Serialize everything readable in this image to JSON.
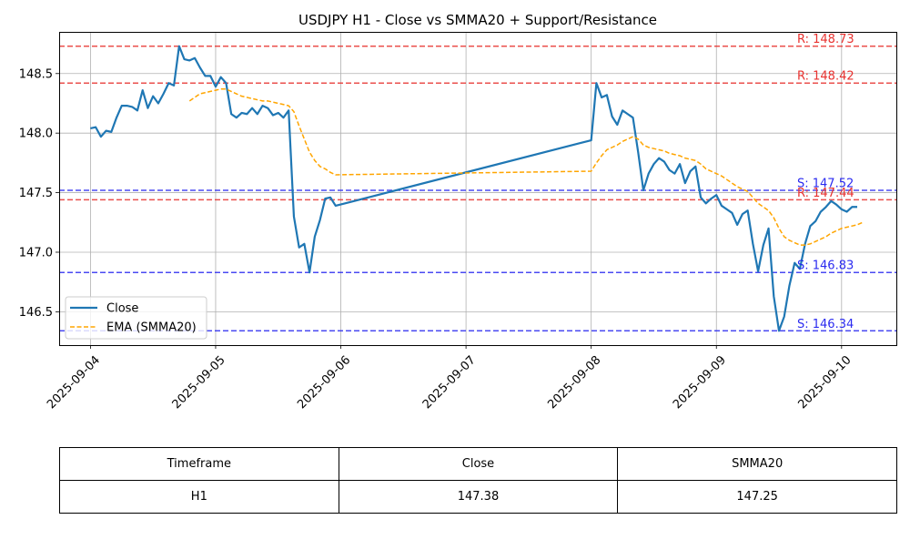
{
  "chart_data": {
    "type": "line",
    "title": "USDJPY H1 - Close vs SMMA20 + Support/Resistance",
    "xlabel": "",
    "ylabel": "",
    "x_ticks": [
      "2025-09-04",
      "2025-09-05",
      "2025-09-06",
      "2025-09-07",
      "2025-09-08",
      "2025-09-09",
      "2025-09-10"
    ],
    "y_ticks": [
      "146.5",
      "147.0",
      "147.5",
      "148.0",
      "148.5"
    ],
    "xlim": [
      "2025-09-03 18:00",
      "2025-09-10 10:30"
    ],
    "ylim": [
      146.22,
      148.85
    ],
    "grid": true,
    "legend_position": "lower-left",
    "series": [
      {
        "name": "Close",
        "color": "#1f77b4",
        "style": "solid",
        "points": [
          [
            "2025-09-04 00:00",
            148.04
          ],
          [
            "2025-09-04 01:00",
            148.05
          ],
          [
            "2025-09-04 02:00",
            147.97
          ],
          [
            "2025-09-04 03:00",
            148.02
          ],
          [
            "2025-09-04 04:00",
            148.01
          ],
          [
            "2025-09-04 05:00",
            148.13
          ],
          [
            "2025-09-04 06:00",
            148.23
          ],
          [
            "2025-09-04 07:00",
            148.23
          ],
          [
            "2025-09-04 08:00",
            148.22
          ],
          [
            "2025-09-04 09:00",
            148.19
          ],
          [
            "2025-09-04 10:00",
            148.36
          ],
          [
            "2025-09-04 11:00",
            148.21
          ],
          [
            "2025-09-04 12:00",
            148.31
          ],
          [
            "2025-09-04 13:00",
            148.25
          ],
          [
            "2025-09-04 14:00",
            148.33
          ],
          [
            "2025-09-04 15:00",
            148.42
          ],
          [
            "2025-09-04 16:00",
            148.4
          ],
          [
            "2025-09-04 17:00",
            148.73
          ],
          [
            "2025-09-04 18:00",
            148.62
          ],
          [
            "2025-09-04 19:00",
            148.61
          ],
          [
            "2025-09-04 20:00",
            148.63
          ],
          [
            "2025-09-04 21:00",
            148.55
          ],
          [
            "2025-09-04 22:00",
            148.48
          ],
          [
            "2025-09-04 23:00",
            148.48
          ],
          [
            "2025-09-05 00:00",
            148.39
          ],
          [
            "2025-09-05 01:00",
            148.47
          ],
          [
            "2025-09-05 02:00",
            148.42
          ],
          [
            "2025-09-05 03:00",
            148.16
          ],
          [
            "2025-09-05 04:00",
            148.13
          ],
          [
            "2025-09-05 05:00",
            148.17
          ],
          [
            "2025-09-05 06:00",
            148.16
          ],
          [
            "2025-09-05 07:00",
            148.21
          ],
          [
            "2025-09-05 08:00",
            148.16
          ],
          [
            "2025-09-05 09:00",
            148.23
          ],
          [
            "2025-09-05 10:00",
            148.21
          ],
          [
            "2025-09-05 11:00",
            148.15
          ],
          [
            "2025-09-05 12:00",
            148.17
          ],
          [
            "2025-09-05 13:00",
            148.13
          ],
          [
            "2025-09-05 14:00",
            148.19
          ],
          [
            "2025-09-05 15:00",
            147.3
          ],
          [
            "2025-09-05 16:00",
            147.04
          ],
          [
            "2025-09-05 17:00",
            147.07
          ],
          [
            "2025-09-05 18:00",
            146.83
          ],
          [
            "2025-09-05 19:00",
            147.13
          ],
          [
            "2025-09-05 20:00",
            147.27
          ],
          [
            "2025-09-05 21:00",
            147.45
          ],
          [
            "2025-09-05 22:00",
            147.46
          ],
          [
            "2025-09-05 23:00",
            147.39
          ],
          [
            "2025-09-08 00:00",
            147.94
          ],
          [
            "2025-09-08 01:00",
            148.42
          ],
          [
            "2025-09-08 02:00",
            148.3
          ],
          [
            "2025-09-08 03:00",
            148.32
          ],
          [
            "2025-09-08 04:00",
            148.14
          ],
          [
            "2025-09-08 05:00",
            148.07
          ],
          [
            "2025-09-08 06:00",
            148.19
          ],
          [
            "2025-09-08 07:00",
            148.16
          ],
          [
            "2025-09-08 08:00",
            148.13
          ],
          [
            "2025-09-08 09:00",
            147.84
          ],
          [
            "2025-09-08 10:00",
            147.52
          ],
          [
            "2025-09-08 11:00",
            147.66
          ],
          [
            "2025-09-08 12:00",
            147.74
          ],
          [
            "2025-09-08 13:00",
            147.79
          ],
          [
            "2025-09-08 14:00",
            147.76
          ],
          [
            "2025-09-08 15:00",
            147.69
          ],
          [
            "2025-09-08 16:00",
            147.66
          ],
          [
            "2025-09-08 17:00",
            147.74
          ],
          [
            "2025-09-08 18:00",
            147.58
          ],
          [
            "2025-09-08 19:00",
            147.68
          ],
          [
            "2025-09-08 20:00",
            147.72
          ],
          [
            "2025-09-08 21:00",
            147.46
          ],
          [
            "2025-09-08 22:00",
            147.41
          ],
          [
            "2025-09-08 23:00",
            147.45
          ],
          [
            "2025-09-09 00:00",
            147.48
          ],
          [
            "2025-09-09 01:00",
            147.39
          ],
          [
            "2025-09-09 02:00",
            147.36
          ],
          [
            "2025-09-09 03:00",
            147.33
          ],
          [
            "2025-09-09 04:00",
            147.23
          ],
          [
            "2025-09-09 05:00",
            147.32
          ],
          [
            "2025-09-09 06:00",
            147.35
          ],
          [
            "2025-09-09 07:00",
            147.07
          ],
          [
            "2025-09-09 08:00",
            146.84
          ],
          [
            "2025-09-09 09:00",
            147.06
          ],
          [
            "2025-09-09 10:00",
            147.2
          ],
          [
            "2025-09-09 11:00",
            146.63
          ],
          [
            "2025-09-09 12:00",
            146.34
          ],
          [
            "2025-09-09 13:00",
            146.46
          ],
          [
            "2025-09-09 14:00",
            146.72
          ],
          [
            "2025-09-09 15:00",
            146.91
          ],
          [
            "2025-09-09 16:00",
            146.86
          ],
          [
            "2025-09-09 17:00",
            147.07
          ],
          [
            "2025-09-09 18:00",
            147.22
          ],
          [
            "2025-09-09 19:00",
            147.26
          ],
          [
            "2025-09-09 20:00",
            147.34
          ],
          [
            "2025-09-09 21:00",
            147.38
          ],
          [
            "2025-09-09 22:00",
            147.43
          ],
          [
            "2025-09-09 23:00",
            147.4
          ],
          [
            "2025-09-10 00:00",
            147.36
          ],
          [
            "2025-09-10 01:00",
            147.34
          ],
          [
            "2025-09-10 02:00",
            147.38
          ],
          [
            "2025-09-10 03:00",
            147.38
          ]
        ]
      },
      {
        "name": "EMA (SMMA20)",
        "color": "#ffa500",
        "style": "dashed",
        "points": [
          [
            "2025-09-04 19:00",
            148.27
          ],
          [
            "2025-09-04 20:00",
            148.3
          ],
          [
            "2025-09-04 21:00",
            148.33
          ],
          [
            "2025-09-04 22:00",
            148.34
          ],
          [
            "2025-09-04 23:00",
            148.35
          ],
          [
            "2025-09-05 00:00",
            148.36
          ],
          [
            "2025-09-05 01:00",
            148.37
          ],
          [
            "2025-09-05 02:00",
            148.37
          ],
          [
            "2025-09-05 03:00",
            148.35
          ],
          [
            "2025-09-05 04:00",
            148.33
          ],
          [
            "2025-09-05 05:00",
            148.31
          ],
          [
            "2025-09-05 06:00",
            148.3
          ],
          [
            "2025-09-05 07:00",
            148.29
          ],
          [
            "2025-09-05 08:00",
            148.28
          ],
          [
            "2025-09-05 09:00",
            148.27
          ],
          [
            "2025-09-05 10:00",
            148.27
          ],
          [
            "2025-09-05 11:00",
            148.26
          ],
          [
            "2025-09-05 12:00",
            148.25
          ],
          [
            "2025-09-05 13:00",
            148.24
          ],
          [
            "2025-09-05 14:00",
            148.23
          ],
          [
            "2025-09-05 15:00",
            148.18
          ],
          [
            "2025-09-05 16:00",
            148.06
          ],
          [
            "2025-09-05 17:00",
            147.95
          ],
          [
            "2025-09-05 18:00",
            147.84
          ],
          [
            "2025-09-05 19:00",
            147.77
          ],
          [
            "2025-09-05 20:00",
            147.72
          ],
          [
            "2025-09-05 21:00",
            147.7
          ],
          [
            "2025-09-05 22:00",
            147.67
          ],
          [
            "2025-09-05 23:00",
            147.65
          ],
          [
            "2025-09-08 00:00",
            147.68
          ],
          [
            "2025-09-08 01:00",
            147.75
          ],
          [
            "2025-09-08 02:00",
            147.81
          ],
          [
            "2025-09-08 03:00",
            147.86
          ],
          [
            "2025-09-08 04:00",
            147.88
          ],
          [
            "2025-09-08 05:00",
            147.9
          ],
          [
            "2025-09-08 06:00",
            147.93
          ],
          [
            "2025-09-08 07:00",
            147.95
          ],
          [
            "2025-09-08 08:00",
            147.97
          ],
          [
            "2025-09-08 09:00",
            147.95
          ],
          [
            "2025-09-08 10:00",
            147.9
          ],
          [
            "2025-09-08 11:00",
            147.88
          ],
          [
            "2025-09-08 12:00",
            147.87
          ],
          [
            "2025-09-08 13:00",
            147.86
          ],
          [
            "2025-09-08 14:00",
            147.85
          ],
          [
            "2025-09-08 15:00",
            147.83
          ],
          [
            "2025-09-08 16:00",
            147.82
          ],
          [
            "2025-09-08 17:00",
            147.81
          ],
          [
            "2025-09-08 18:00",
            147.79
          ],
          [
            "2025-09-08 19:00",
            147.78
          ],
          [
            "2025-09-08 20:00",
            147.77
          ],
          [
            "2025-09-08 21:00",
            147.74
          ],
          [
            "2025-09-08 22:00",
            147.7
          ],
          [
            "2025-09-08 23:00",
            147.68
          ],
          [
            "2025-09-09 00:00",
            147.66
          ],
          [
            "2025-09-09 01:00",
            147.64
          ],
          [
            "2025-09-09 02:00",
            147.61
          ],
          [
            "2025-09-09 03:00",
            147.58
          ],
          [
            "2025-09-09 04:00",
            147.55
          ],
          [
            "2025-09-09 05:00",
            147.53
          ],
          [
            "2025-09-09 06:00",
            147.51
          ],
          [
            "2025-09-09 07:00",
            147.46
          ],
          [
            "2025-09-09 08:00",
            147.41
          ],
          [
            "2025-09-09 09:00",
            147.38
          ],
          [
            "2025-09-09 10:00",
            147.35
          ],
          [
            "2025-09-09 11:00",
            147.29
          ],
          [
            "2025-09-09 12:00",
            147.2
          ],
          [
            "2025-09-09 13:00",
            147.13
          ],
          [
            "2025-09-09 14:00",
            147.1
          ],
          [
            "2025-09-09 15:00",
            147.08
          ],
          [
            "2025-09-09 16:00",
            147.06
          ],
          [
            "2025-09-09 17:00",
            147.06
          ],
          [
            "2025-09-09 18:00",
            147.07
          ],
          [
            "2025-09-09 19:00",
            147.09
          ],
          [
            "2025-09-09 20:00",
            147.11
          ],
          [
            "2025-09-09 21:00",
            147.13
          ],
          [
            "2025-09-09 22:00",
            147.16
          ],
          [
            "2025-09-09 23:00",
            147.18
          ],
          [
            "2025-09-10 00:00",
            147.2
          ],
          [
            "2025-09-10 01:00",
            147.21
          ],
          [
            "2025-09-10 02:00",
            147.22
          ],
          [
            "2025-09-10 03:00",
            147.23
          ],
          [
            "2025-09-10 04:00",
            147.25
          ]
        ]
      }
    ],
    "levels": [
      {
        "type": "resistance",
        "value": 148.73,
        "label": "R: 148.73",
        "color": "#e8322f"
      },
      {
        "type": "resistance",
        "value": 148.42,
        "label": "R: 148.42",
        "color": "#e8322f"
      },
      {
        "type": "resistance",
        "value": 147.44,
        "label": "R: 147.44",
        "color": "#e8322f"
      },
      {
        "type": "support",
        "value": 147.52,
        "label": "S: 147.52",
        "color": "#2b2bf0"
      },
      {
        "type": "support",
        "value": 146.83,
        "label": "S: 146.83",
        "color": "#2b2bf0"
      },
      {
        "type": "support",
        "value": 146.34,
        "label": "S: 146.34",
        "color": "#2b2bf0"
      }
    ],
    "legend": [
      {
        "label": "Close",
        "color": "#1f77b4",
        "style": "solid"
      },
      {
        "label": "EMA (SMMA20)",
        "color": "#ffa500",
        "style": "dashed"
      }
    ]
  },
  "table": {
    "headers": [
      "Timeframe",
      "Close",
      "SMMA20"
    ],
    "rows": [
      [
        "H1",
        "147.38",
        "147.25"
      ]
    ]
  }
}
